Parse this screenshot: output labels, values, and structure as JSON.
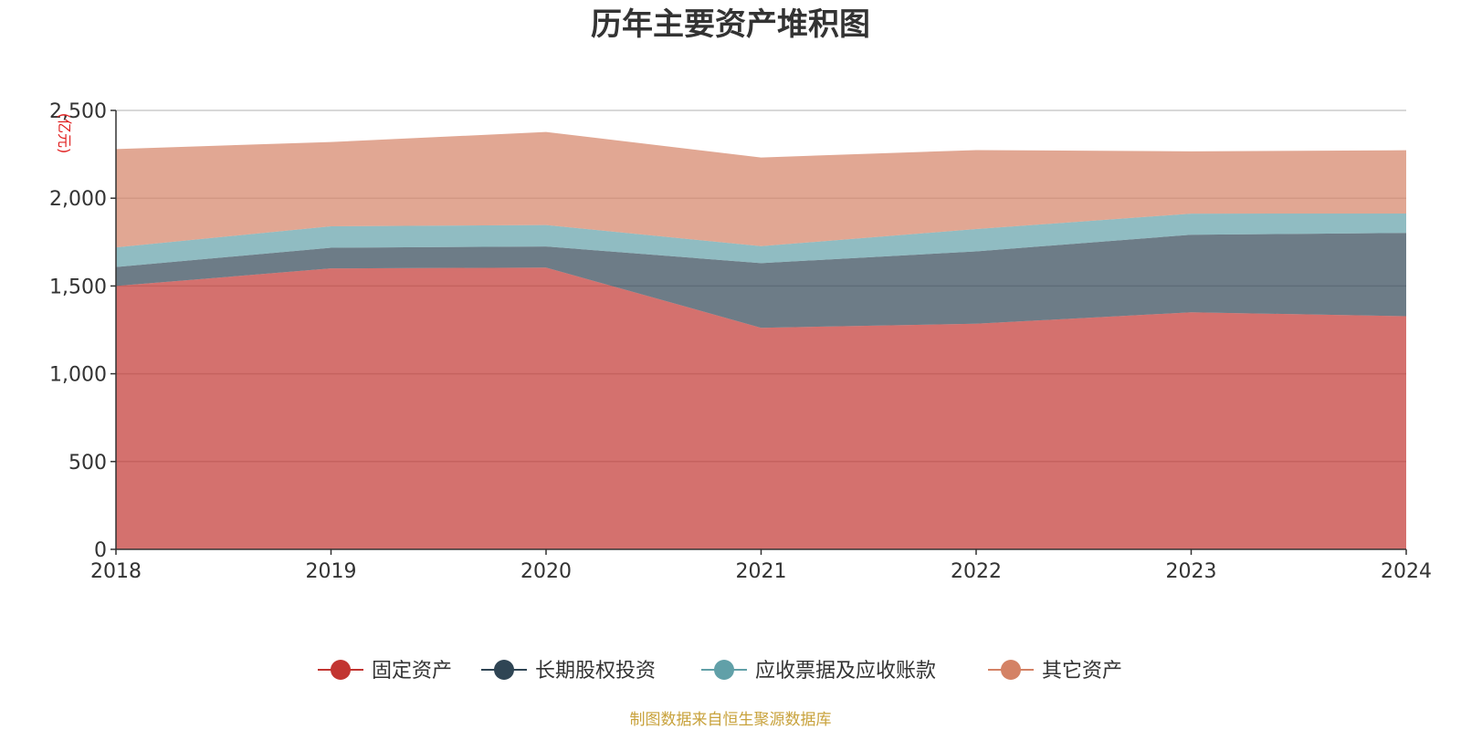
{
  "chart_data": {
    "type": "area",
    "stacked": true,
    "title": "历年主要资产堆积图",
    "unit": "(亿元)",
    "x": [
      "2018",
      "2019",
      "2020",
      "2021",
      "2022",
      "2023",
      "2024"
    ],
    "ylim": [
      0,
      2500
    ],
    "yticks": [
      0,
      500,
      1000,
      1500,
      2000,
      2500
    ],
    "ytick_labels": [
      "0",
      "500",
      "1,000",
      "1,500",
      "2,000",
      "2,500"
    ],
    "grid": true,
    "legend_position": "bottom",
    "series": [
      {
        "name": "固定资产",
        "color": "#c23531",
        "values": [
          1500,
          1600,
          1605,
          1262,
          1285,
          1350,
          1328
        ]
      },
      {
        "name": "长期股权投资",
        "color": "#2f4554",
        "values": [
          108,
          118,
          120,
          368,
          412,
          442,
          474
        ]
      },
      {
        "name": "应收票据及应收账款",
        "color": "#61a0a8",
        "values": [
          112,
          122,
          122,
          97,
          127,
          120,
          111
        ]
      },
      {
        "name": "其它资产",
        "color": "#d48265",
        "values": [
          560,
          480,
          530,
          505,
          450,
          355,
          360
        ]
      }
    ]
  },
  "source": "制图数据来自恒生聚源数据库"
}
